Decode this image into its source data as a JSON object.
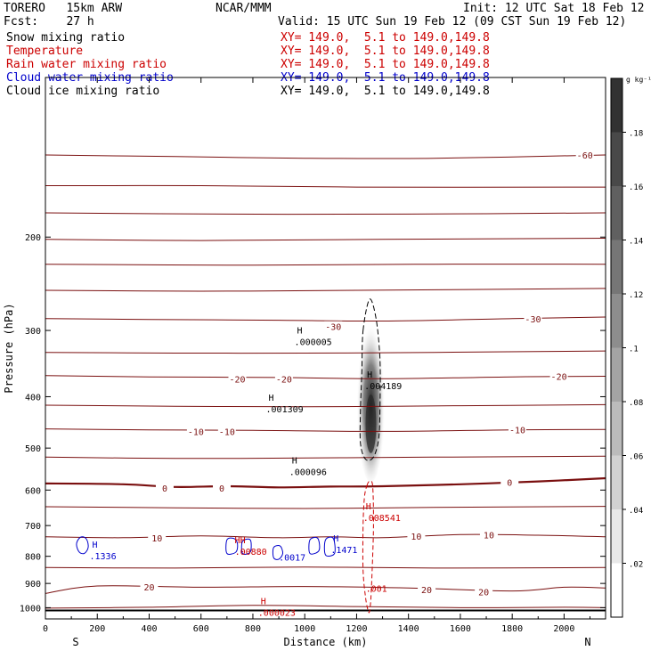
{
  "header": {
    "model": "TORERO   15km ARW",
    "org": "NCAR/MMM",
    "init": "Init: 12 UTC Sat 18 Feb 12",
    "fcst": "Fcst:    27 h",
    "valid": "Valid: 15 UTC Sun 19 Feb 12 (09 CST Sun 19 Feb 12)",
    "fields": [
      {
        "label": "Snow mixing ratio",
        "xsec": "XY= 149.0,  5.1 to 149.0,149.8",
        "color": "#000000"
      },
      {
        "label": "Temperature",
        "xsec": "XY= 149.0,  5.1 to 149.0,149.8",
        "color": "#cc0000"
      },
      {
        "label": "Rain water mixing ratio",
        "xsec": "XY= 149.0,  5.1 to 149.0,149.8",
        "color": "#cc0000"
      },
      {
        "label": "Cloud water mixing ratio",
        "xsec": "XY= 149.0,  5.1 to 149.0,149.8",
        "color": "#0000cc"
      },
      {
        "label": "Cloud ice mixing ratio",
        "xsec": "XY= 149.0,  5.1 to 149.0,149.8",
        "color": "#000000"
      }
    ]
  },
  "chart_data": {
    "type": "contour",
    "xlabel": "Distance (km)",
    "ylabel": "Pressure (hPa)",
    "xlim": [
      0,
      2160
    ],
    "ylim": [
      1050,
      100
    ],
    "x_ticks": [
      0,
      200,
      400,
      600,
      800,
      1000,
      1200,
      1400,
      1600,
      1800,
      2000
    ],
    "y_ticks": [
      200,
      300,
      400,
      500,
      600,
      700,
      800,
      900,
      1000
    ],
    "start_label": "S",
    "end_label": "N",
    "colorbar": {
      "unit": "g kg⁻¹",
      "ticks": [
        0.02,
        0.04,
        0.06,
        0.08,
        0.1,
        0.12,
        0.14,
        0.16,
        0.18
      ],
      "tick_labels": [
        ".02",
        ".04",
        ".06",
        ".08",
        ".1",
        ".12",
        ".14",
        ".16",
        ".18"
      ],
      "max": 0.2
    },
    "snow_core": {
      "x_km": 1255,
      "p_top": 280,
      "p_bottom": 580,
      "p_peak": 450,
      "max": 0.2
    },
    "ice_contour": {
      "points": [
        [
          1225,
          300
        ],
        [
          1250,
          262
        ],
        [
          1275,
          285
        ],
        [
          1290,
          340
        ],
        [
          1290,
          420
        ],
        [
          1285,
          480
        ],
        [
          1265,
          520
        ],
        [
          1235,
          525
        ],
        [
          1215,
          490
        ],
        [
          1215,
          420
        ],
        [
          1220,
          360
        ]
      ]
    },
    "rain_contour": {
      "points": [
        [
          1240,
          588
        ],
        [
          1250,
          578
        ],
        [
          1262,
          590
        ],
        [
          1265,
          700
        ],
        [
          1260,
          850
        ],
        [
          1255,
          960
        ],
        [
          1250,
          1015
        ],
        [
          1245,
          1015
        ],
        [
          1235,
          960
        ],
        [
          1225,
          850
        ],
        [
          1225,
          700
        ],
        [
          1230,
          620
        ]
      ]
    },
    "cloud_water_contours": [
      {
        "points": [
          [
            130,
            785
          ],
          [
            120,
            760
          ],
          [
            130,
            740
          ],
          [
            145,
            735
          ],
          [
            160,
            745
          ],
          [
            165,
            770
          ],
          [
            150,
            790
          ]
        ]
      },
      {
        "points": [
          [
            700,
            790
          ],
          [
            700,
            745
          ],
          [
            725,
            740
          ],
          [
            740,
            755
          ],
          [
            735,
            785
          ]
        ]
      },
      {
        "points": [
          [
            760,
            790
          ],
          [
            760,
            750
          ],
          [
            790,
            745
          ],
          [
            790,
            785
          ]
        ]
      },
      {
        "points": [
          [
            880,
            805
          ],
          [
            880,
            770
          ],
          [
            905,
            765
          ],
          [
            915,
            790
          ],
          [
            900,
            810
          ]
        ]
      },
      {
        "points": [
          [
            1020,
            790
          ],
          [
            1020,
            745
          ],
          [
            1050,
            740
          ],
          [
            1055,
            780
          ]
        ]
      },
      {
        "points": [
          [
            1080,
            795
          ],
          [
            1080,
            745
          ],
          [
            1110,
            740
          ],
          [
            1115,
            790
          ]
        ]
      }
    ],
    "temperature_isotherms": [
      {
        "level": -60,
        "label": "-60",
        "points": [
          [
            0,
            140
          ],
          [
            500,
            141
          ],
          [
            1000,
            142
          ],
          [
            1500,
            142
          ],
          [
            2160,
            140
          ]
        ],
        "label_at": [
          2080,
          140
        ]
      },
      {
        "level": -55,
        "label": "",
        "points": [
          [
            0,
            160
          ],
          [
            600,
            160
          ],
          [
            1200,
            161
          ],
          [
            2160,
            161
          ]
        ],
        "label_at": null
      },
      {
        "level": -50,
        "label": "",
        "points": [
          [
            0,
            180
          ],
          [
            700,
            181
          ],
          [
            1400,
            181
          ],
          [
            2160,
            180
          ]
        ],
        "label_at": null
      },
      {
        "level": -45,
        "label": "",
        "points": [
          [
            0,
            202
          ],
          [
            600,
            203
          ],
          [
            1300,
            202
          ],
          [
            2160,
            201
          ]
        ],
        "label_at": null
      },
      {
        "level": -40,
        "label": "",
        "points": [
          [
            0,
            225
          ],
          [
            800,
            226
          ],
          [
            1500,
            225
          ],
          [
            2160,
            225
          ]
        ],
        "label_at": null
      },
      {
        "level": -35,
        "label": "",
        "points": [
          [
            0,
            252
          ],
          [
            600,
            253
          ],
          [
            1200,
            252
          ],
          [
            2160,
            250
          ]
        ],
        "label_at": null
      },
      {
        "level": -30,
        "label": "-30",
        "points": [
          [
            0,
            285
          ],
          [
            400,
            286
          ],
          [
            900,
            287
          ],
          [
            1300,
            288
          ],
          [
            1800,
            285
          ],
          [
            2160,
            283
          ]
        ],
        "label_at": [
          1880,
          285
        ]
      },
      {
        "level": -25,
        "label": "",
        "points": [
          [
            0,
            330
          ],
          [
            500,
            331
          ],
          [
            1000,
            331
          ],
          [
            1500,
            330
          ],
          [
            2160,
            328
          ]
        ],
        "label_at": null
      },
      {
        "level": -20,
        "label": "-20",
        "points": [
          [
            0,
            365
          ],
          [
            400,
            367
          ],
          [
            900,
            368
          ],
          [
            1300,
            370
          ],
          [
            1800,
            367
          ],
          [
            2160,
            366
          ]
        ],
        "label_at": [
          1980,
          366
        ]
      },
      {
        "level": -15,
        "label": "",
        "points": [
          [
            0,
            415
          ],
          [
            500,
            417
          ],
          [
            1000,
            418
          ],
          [
            1600,
            416
          ],
          [
            2160,
            414
          ]
        ],
        "label_at": null
      },
      {
        "level": -10,
        "label": "-10",
        "points": [
          [
            0,
            460
          ],
          [
            400,
            462
          ],
          [
            800,
            463
          ],
          [
            1300,
            465
          ],
          [
            1800,
            462
          ],
          [
            2160,
            461
          ]
        ],
        "label_at": [
          1820,
          462
        ]
      },
      {
        "level": -5,
        "label": "",
        "points": [
          [
            0,
            520
          ],
          [
            500,
            523
          ],
          [
            1000,
            522
          ],
          [
            1500,
            520
          ],
          [
            2160,
            518
          ]
        ],
        "label_at": null
      },
      {
        "level": 0,
        "label": "0",
        "points": [
          [
            0,
            583
          ],
          [
            300,
            585
          ],
          [
            500,
            592
          ],
          [
            700,
            590
          ],
          [
            900,
            593
          ],
          [
            1100,
            591
          ],
          [
            1300,
            590
          ],
          [
            1600,
            585
          ],
          [
            1900,
            578
          ],
          [
            2160,
            570
          ]
        ],
        "label_at": [
          1790,
          580
        ]
      },
      {
        "level": 5,
        "label": "",
        "points": [
          [
            0,
            645
          ],
          [
            500,
            648
          ],
          [
            1000,
            650
          ],
          [
            1500,
            647
          ],
          [
            2160,
            644
          ]
        ],
        "label_at": null
      },
      {
        "level": 10,
        "label": "10",
        "points": [
          [
            0,
            735
          ],
          [
            300,
            738
          ],
          [
            600,
            732
          ],
          [
            900,
            738
          ],
          [
            1100,
            735
          ],
          [
            1300,
            738
          ],
          [
            1600,
            728
          ],
          [
            1900,
            730
          ],
          [
            2160,
            735
          ]
        ],
        "label_at": [
          1710,
          728
        ]
      },
      {
        "level": 15,
        "label": "",
        "points": [
          [
            0,
            840
          ],
          [
            500,
            842
          ],
          [
            1000,
            838
          ],
          [
            1500,
            842
          ],
          [
            2160,
            840
          ]
        ],
        "label_at": null
      },
      {
        "level": 20,
        "label": "20",
        "points": [
          [
            0,
            940
          ],
          [
            200,
            910
          ],
          [
            600,
            915
          ],
          [
            1000,
            912
          ],
          [
            1400,
            918
          ],
          [
            1800,
            930
          ],
          [
            2000,
            915
          ],
          [
            2160,
            918
          ]
        ],
        "label_at": [
          1470,
          924
        ]
      },
      {
        "level": 25,
        "label": "",
        "points": [
          [
            0,
            1002
          ],
          [
            400,
            998
          ],
          [
            800,
            990
          ],
          [
            1200,
            995
          ],
          [
            1600,
            1000
          ],
          [
            2000,
            998
          ],
          [
            2160,
            1000
          ]
        ],
        "label_at": null
      }
    ],
    "surface": {
      "pressure": 1012
    },
    "extrema": [
      {
        "kind": "H",
        "value": ".000005",
        "x": 960,
        "p": 310,
        "color": "#000000"
      },
      {
        "kind": "H",
        "value": ".004189",
        "x": 1230,
        "p": 375,
        "color": "#000000"
      },
      {
        "kind": "H",
        "value": ".001309",
        "x": 850,
        "p": 415,
        "color": "#000000"
      },
      {
        "kind": "H",
        "value": ".000096",
        "x": 940,
        "p": 545,
        "color": "#000000"
      },
      {
        "kind": "H",
        "value": ".008541",
        "x": 1225,
        "p": 665,
        "color": "#cc0000"
      },
      {
        "kind": "HH",
        "value": ".00880",
        "x": 730,
        "p": 770,
        "color": "#cc0000"
      },
      {
        "kind": "H",
        "value": ".1336",
        "x": 170,
        "p": 785,
        "color": "#0000cc"
      },
      {
        "kind": "",
        "value": ".0017",
        "x": 900,
        "p": 790,
        "color": "#0000cc"
      },
      {
        "kind": "H",
        "value": ".1471",
        "x": 1100,
        "p": 765,
        "color": "#0000cc"
      },
      {
        "kind": "",
        "value": ".001",
        "x": 1235,
        "p": 905,
        "color": "#cc0000"
      },
      {
        "kind": "H",
        "value": ".000023",
        "x": 820,
        "p": 1005,
        "color": "#cc0000"
      }
    ],
    "contour_labels": [
      {
        "text": "-30",
        "x": 1110,
        "p": 295,
        "color": "#cc0000"
      },
      {
        "text": "-20",
        "x": 740,
        "p": 370,
        "color": "#cc0000"
      },
      {
        "text": "-20",
        "x": 920,
        "p": 370,
        "color": "#cc0000"
      },
      {
        "text": "-10",
        "x": 580,
        "p": 465,
        "color": "#cc0000"
      },
      {
        "text": "-10",
        "x": 700,
        "p": 465,
        "color": "#cc0000"
      },
      {
        "text": "0",
        "x": 460,
        "p": 595,
        "color": "#cc0000"
      },
      {
        "text": "0",
        "x": 680,
        "p": 595,
        "color": "#cc0000"
      },
      {
        "text": "10",
        "x": 430,
        "p": 738,
        "color": "#cc0000"
      },
      {
        "text": "10",
        "x": 1430,
        "p": 733,
        "color": "#cc0000"
      },
      {
        "text": "20",
        "x": 400,
        "p": 914,
        "color": "#cc0000"
      },
      {
        "text": "20",
        "x": 1690,
        "p": 934,
        "color": "#cc0000"
      }
    ]
  }
}
